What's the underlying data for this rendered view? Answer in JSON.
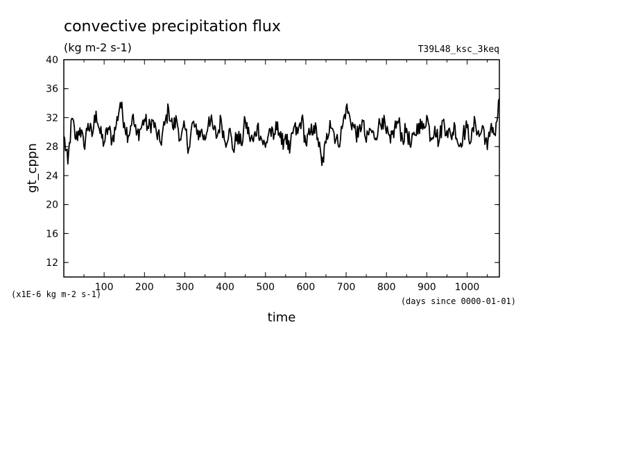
{
  "chart_data": {
    "type": "line",
    "title": "convective precipitation flux",
    "subtitle": "(kg m-2 s-1)",
    "run_label": "T39L48_ksc_3keq",
    "xlabel": "time",
    "ylabel": "gt_cppn",
    "x_units": "(days since 0000-01-01)",
    "y_units": "(x1E-6 kg m-2 s-1)",
    "xlim": [
      0,
      1080
    ],
    "ylim": [
      10,
      40
    ],
    "x_ticks": [
      100,
      200,
      300,
      400,
      500,
      600,
      700,
      800,
      900,
      1000
    ],
    "x_tick_labels": [
      "100",
      "200",
      "300",
      "400",
      "500",
      "600",
      "700",
      "800",
      "900",
      "1000"
    ],
    "y_ticks": [
      12,
      16,
      20,
      24,
      28,
      32,
      36,
      40
    ],
    "y_tick_labels": [
      "12",
      "16",
      "20",
      "24",
      "28",
      "32",
      "36",
      "40"
    ],
    "series": [
      {
        "name": "gt_cppn",
        "x": [
          0,
          10,
          20,
          30,
          40,
          50,
          60,
          70,
          80,
          90,
          100,
          110,
          120,
          130,
          140,
          150,
          160,
          170,
          180,
          190,
          200,
          210,
          220,
          230,
          240,
          250,
          260,
          270,
          280,
          290,
          300,
          310,
          320,
          330,
          340,
          350,
          360,
          370,
          380,
          390,
          400,
          410,
          420,
          430,
          440,
          450,
          460,
          470,
          480,
          490,
          500,
          510,
          520,
          530,
          540,
          550,
          560,
          570,
          580,
          590,
          600,
          610,
          620,
          630,
          640,
          650,
          660,
          670,
          680,
          690,
          700,
          710,
          720,
          730,
          740,
          750,
          760,
          770,
          780,
          790,
          800,
          810,
          820,
          830,
          840,
          850,
          860,
          870,
          880,
          890,
          900,
          910,
          920,
          930,
          940,
          950,
          960,
          970,
          980,
          990,
          1000,
          1010,
          1020,
          1030,
          1040,
          1050,
          1060,
          1070,
          1080
        ],
        "values": [
          29.5,
          25.6,
          31.9,
          29.0,
          30.6,
          28.0,
          31.2,
          29.4,
          32.9,
          29.8,
          28.5,
          30.6,
          28.9,
          31.0,
          34.1,
          31.3,
          29.5,
          32.2,
          29.6,
          30.4,
          31.8,
          30.5,
          31.6,
          29.8,
          28.5,
          31.0,
          33.2,
          30.6,
          31.7,
          28.9,
          30.6,
          27.8,
          31.4,
          29.7,
          30.2,
          28.9,
          32.1,
          30.5,
          29.4,
          31.8,
          28.6,
          30.4,
          27.5,
          29.7,
          28.2,
          31.6,
          29.4,
          28.7,
          30.9,
          29.1,
          27.9,
          30.5,
          29.0,
          31.4,
          28.3,
          29.7,
          27.1,
          30.6,
          29.8,
          32.0,
          28.4,
          29.6,
          30.9,
          29.2,
          25.4,
          28.5,
          31.6,
          29.9,
          28.3,
          30.5,
          33.4,
          31.8,
          30.6,
          29.3,
          31.7,
          28.6,
          30.4,
          29.2,
          30.7,
          31.9,
          29.8,
          28.5,
          30.6,
          31.4,
          29.0,
          30.5,
          27.9,
          29.6,
          31.2,
          30.4,
          32.3,
          29.2,
          30.8,
          28.6,
          31.6,
          30.2,
          29.4,
          30.9,
          28.0,
          29.7,
          30.6,
          28.8,
          31.5,
          29.4,
          30.8,
          27.6,
          31.2,
          29.5,
          34.6
        ]
      }
    ]
  }
}
